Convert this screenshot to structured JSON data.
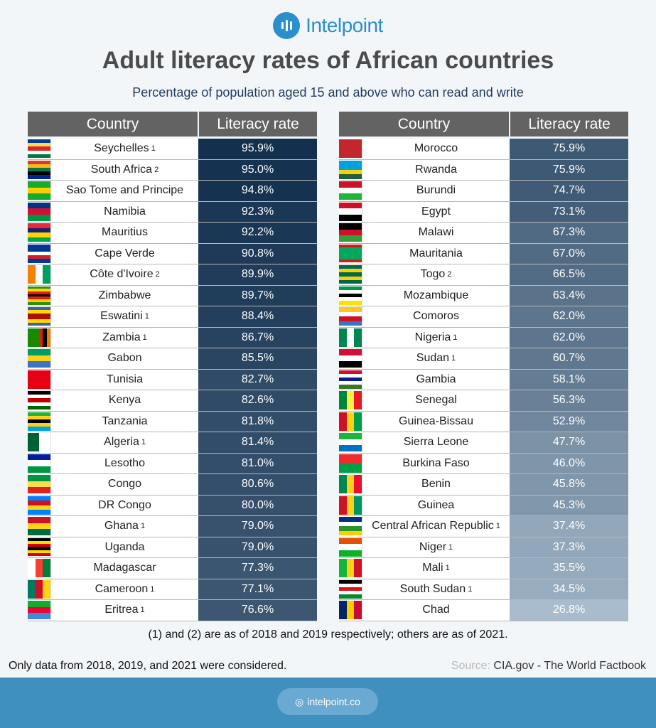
{
  "brand": {
    "name": "Intelpoint",
    "url": "intelpoint.co",
    "color": "#2a8fcc"
  },
  "header": {
    "title": "Adult literacy rates of African countries",
    "subtitle": "Percentage of population aged 15 and above who can read and write"
  },
  "chart_data": {
    "type": "table",
    "columns": [
      "Country",
      "Literacy rate"
    ],
    "color_scale": {
      "high": "#13304f",
      "low": "#a9bccd",
      "min": 26.8,
      "max": 95.9
    },
    "tables": [
      {
        "rows": [
          {
            "country": "Seychelles",
            "note": "1",
            "rate": "95.9%",
            "value": 95.9,
            "flag": {
              "d": "h",
              "c": [
                "#003f87",
                "#fcd856",
                "#d62828",
                "#fff",
                "#007a3d"
              ]
            }
          },
          {
            "country": "South Africa",
            "note": "2",
            "rate": "95.0%",
            "value": 95.0,
            "flag": {
              "d": "h",
              "c": [
                "#de3831",
                "#ffb612",
                "#007a4d",
                "#000",
                "#002395"
              ]
            }
          },
          {
            "country": "Sao Tome and Principe",
            "note": "",
            "rate": "94.8%",
            "value": 94.8,
            "flag": {
              "d": "h",
              "c": [
                "#12ad2b",
                "#ffce00",
                "#12ad2b"
              ]
            }
          },
          {
            "country": "Namibia",
            "note": "",
            "rate": "92.3%",
            "value": 92.3,
            "flag": {
              "d": "h",
              "c": [
                "#003580",
                "#d21034",
                "#009543"
              ]
            }
          },
          {
            "country": "Mauritius",
            "note": "",
            "rate": "92.2%",
            "value": 92.2,
            "flag": {
              "d": "h",
              "c": [
                "#ea2839",
                "#1a206d",
                "#ffd500",
                "#00a551"
              ]
            }
          },
          {
            "country": "Cape Verde",
            "note": "",
            "rate": "90.8%",
            "value": 90.8,
            "flag": {
              "d": "h",
              "c": [
                "#003893",
                "#003893",
                "#fff",
                "#cf2027",
                "#003893"
              ]
            }
          },
          {
            "country": "Côte d'Ivoire",
            "note": "2",
            "rate": "89.9%",
            "value": 89.9,
            "flag": {
              "d": "v",
              "c": [
                "#f77f00",
                "#fff",
                "#009e60"
              ]
            }
          },
          {
            "country": "Zimbabwe",
            "note": "",
            "rate": "89.7%",
            "value": 89.7,
            "flag": {
              "d": "h",
              "c": [
                "#319208",
                "#ffd200",
                "#de2010",
                "#000",
                "#de2010",
                "#ffd200",
                "#319208"
              ]
            }
          },
          {
            "country": "Eswatini",
            "note": "1",
            "rate": "88.4%",
            "value": 88.4,
            "flag": {
              "d": "h",
              "c": [
                "#3e5eb9",
                "#ffd900",
                "#b10c0c",
                "#b10c0c",
                "#ffd900",
                "#3e5eb9"
              ]
            }
          },
          {
            "country": "Zambia",
            "note": "1",
            "rate": "86.7%",
            "value": 86.7,
            "flag": {
              "d": "v",
              "c": [
                "#198a00",
                "#198a00",
                "#198a00",
                "#de2010",
                "#000",
                "#ef7d00"
              ]
            }
          },
          {
            "country": "Gabon",
            "note": "",
            "rate": "85.5%",
            "value": 85.5,
            "flag": {
              "d": "h",
              "c": [
                "#009e60",
                "#fcd116",
                "#3a75c4"
              ]
            }
          },
          {
            "country": "Tunisia",
            "note": "",
            "rate": "82.7%",
            "value": 82.7,
            "flag": {
              "d": "h",
              "c": [
                "#e70013"
              ]
            }
          },
          {
            "country": "Kenya",
            "note": "",
            "rate": "82.6%",
            "value": 82.6,
            "flag": {
              "d": "h",
              "c": [
                "#000",
                "#fff",
                "#bb0000",
                "#fff",
                "#006600"
              ]
            }
          },
          {
            "country": "Tanzania",
            "note": "",
            "rate": "81.8%",
            "value": 81.8,
            "flag": {
              "d": "h",
              "c": [
                "#1eb53a",
                "#fcd116",
                "#000",
                "#fcd116",
                "#00a3dd"
              ]
            }
          },
          {
            "country": "Algeria",
            "note": "1",
            "rate": "81.4%",
            "value": 81.4,
            "flag": {
              "d": "v",
              "c": [
                "#006233",
                "#fff"
              ]
            }
          },
          {
            "country": "Lesotho",
            "note": "",
            "rate": "81.0%",
            "value": 81.0,
            "flag": {
              "d": "h",
              "c": [
                "#00209f",
                "#fff",
                "#009543"
              ]
            }
          },
          {
            "country": "Congo",
            "note": "",
            "rate": "80.6%",
            "value": 80.6,
            "flag": {
              "d": "h",
              "c": [
                "#009543",
                "#fbde4a",
                "#dc241f"
              ]
            }
          },
          {
            "country": "DR Congo",
            "note": "",
            "rate": "80.0%",
            "value": 80.0,
            "flag": {
              "d": "h",
              "c": [
                "#007fff",
                "#ce1021",
                "#f7d618",
                "#007fff"
              ]
            }
          },
          {
            "country": "Ghana",
            "note": "1",
            "rate": "79.0%",
            "value": 79.0,
            "flag": {
              "d": "h",
              "c": [
                "#ce1126",
                "#fcd116",
                "#006b3f"
              ]
            }
          },
          {
            "country": "Uganda",
            "note": "",
            "rate": "79.0%",
            "value": 79.0,
            "flag": {
              "d": "h",
              "c": [
                "#000",
                "#fcdc04",
                "#d90000",
                "#000",
                "#fcdc04",
                "#d90000"
              ]
            }
          },
          {
            "country": "Madagascar",
            "note": "",
            "rate": "77.3%",
            "value": 77.3,
            "flag": {
              "d": "v",
              "c": [
                "#fff",
                "#fc3d32",
                "#007e3a"
              ]
            }
          },
          {
            "country": "Cameroon",
            "note": "1",
            "rate": "77.1%",
            "value": 77.1,
            "flag": {
              "d": "v",
              "c": [
                "#007a5e",
                "#ce1126",
                "#fcd116"
              ]
            }
          },
          {
            "country": "Eritrea",
            "note": "1",
            "rate": "76.6%",
            "value": 76.6,
            "flag": {
              "d": "h",
              "c": [
                "#12ad2b",
                "#ea0437",
                "#4189dd"
              ]
            }
          }
        ]
      },
      {
        "rows": [
          {
            "country": "Morocco",
            "note": "",
            "rate": "75.9%",
            "value": 75.9,
            "flag": {
              "d": "h",
              "c": [
                "#c1272d"
              ]
            }
          },
          {
            "country": "Rwanda",
            "note": "",
            "rate": "75.9%",
            "value": 75.9,
            "flag": {
              "d": "h",
              "c": [
                "#00a1de",
                "#00a1de",
                "#fad201",
                "#20603d"
              ]
            }
          },
          {
            "country": "Burundi",
            "note": "",
            "rate": "74.7%",
            "value": 74.7,
            "flag": {
              "d": "h",
              "c": [
                "#ce1126",
                "#fff",
                "#1eb53a"
              ]
            }
          },
          {
            "country": "Egypt",
            "note": "",
            "rate": "73.1%",
            "value": 73.1,
            "flag": {
              "d": "h",
              "c": [
                "#ce1126",
                "#fff",
                "#000"
              ]
            }
          },
          {
            "country": "Malawi",
            "note": "",
            "rate": "67.3%",
            "value": 67.3,
            "flag": {
              "d": "h",
              "c": [
                "#000",
                "#ce1126",
                "#339e35"
              ]
            }
          },
          {
            "country": "Mauritania",
            "note": "",
            "rate": "67.0%",
            "value": 67.0,
            "flag": {
              "d": "h",
              "c": [
                "#d01c1f",
                "#00a95c",
                "#00a95c",
                "#00a95c",
                "#00a95c",
                "#d01c1f"
              ]
            }
          },
          {
            "country": "Togo",
            "note": "2",
            "rate": "66.5%",
            "value": 66.5,
            "flag": {
              "d": "h",
              "c": [
                "#006a4e",
                "#ffce00",
                "#006a4e",
                "#ffce00",
                "#006a4e"
              ]
            }
          },
          {
            "country": "Mozambique",
            "note": "",
            "rate": "63.4%",
            "value": 63.4,
            "flag": {
              "d": "h",
              "c": [
                "#009a44",
                "#fff",
                "#000",
                "#fff",
                "#fce100"
              ]
            }
          },
          {
            "country": "Comoros",
            "note": "",
            "rate": "62.0%",
            "value": 62.0,
            "flag": {
              "d": "h",
              "c": [
                "#ffc61e",
                "#fff",
                "#ce1126",
                "#3a75c4"
              ]
            }
          },
          {
            "country": "Nigeria",
            "note": "1",
            "rate": "62.0%",
            "value": 62.0,
            "flag": {
              "d": "v",
              "c": [
                "#008751",
                "#fff",
                "#008751"
              ]
            }
          },
          {
            "country": "Sudan",
            "note": "1",
            "rate": "60.7%",
            "value": 60.7,
            "flag": {
              "d": "h",
              "c": [
                "#d21034",
                "#fff",
                "#000"
              ]
            }
          },
          {
            "country": "Gambia",
            "note": "",
            "rate": "58.1%",
            "value": 58.1,
            "flag": {
              "d": "h",
              "c": [
                "#ce1126",
                "#fff",
                "#0c1c8c",
                "#fff",
                "#3a7728"
              ]
            }
          },
          {
            "country": "Senegal",
            "note": "",
            "rate": "56.3%",
            "value": 56.3,
            "flag": {
              "d": "v",
              "c": [
                "#00853f",
                "#fdef42",
                "#e31b23"
              ]
            }
          },
          {
            "country": "Guinea-Bissau",
            "note": "",
            "rate": "52.9%",
            "value": 52.9,
            "flag": {
              "d": "v",
              "c": [
                "#ce1126",
                "#fcd116",
                "#009e49"
              ]
            }
          },
          {
            "country": "Sierra Leone",
            "note": "",
            "rate": "47.7%",
            "value": 47.7,
            "flag": {
              "d": "h",
              "c": [
                "#1eb53a",
                "#fff",
                "#0072c6"
              ]
            }
          },
          {
            "country": "Burkina Faso",
            "note": "",
            "rate": "46.0%",
            "value": 46.0,
            "flag": {
              "d": "h",
              "c": [
                "#ef2b2d",
                "#009e49"
              ]
            }
          },
          {
            "country": "Benin",
            "note": "",
            "rate": "45.8%",
            "value": 45.8,
            "flag": {
              "d": "v",
              "c": [
                "#008751",
                "#fcd116",
                "#e8112d"
              ]
            }
          },
          {
            "country": "Guinea",
            "note": "",
            "rate": "45.3%",
            "value": 45.3,
            "flag": {
              "d": "v",
              "c": [
                "#ce1126",
                "#fcd116",
                "#009460"
              ]
            }
          },
          {
            "country": "Central African Republic",
            "note": "1",
            "rate": "37.4%",
            "value": 37.4,
            "flag": {
              "d": "h",
              "c": [
                "#003082",
                "#fff",
                "#289728",
                "#ffce00"
              ]
            }
          },
          {
            "country": "Niger",
            "note": "1",
            "rate": "37.3%",
            "value": 37.3,
            "flag": {
              "d": "h",
              "c": [
                "#e05206",
                "#fff",
                "#0db02b"
              ]
            }
          },
          {
            "country": "Mali",
            "note": "1",
            "rate": "35.5%",
            "value": 35.5,
            "flag": {
              "d": "v",
              "c": [
                "#14b53a",
                "#fcd116",
                "#ce1126"
              ]
            }
          },
          {
            "country": "South Sudan",
            "note": "1",
            "rate": "34.5%",
            "value": 34.5,
            "flag": {
              "d": "h",
              "c": [
                "#000",
                "#fff",
                "#da121a",
                "#fff",
                "#078930"
              ]
            }
          },
          {
            "country": "Chad",
            "note": "",
            "rate": "26.8%",
            "value": 26.8,
            "flag": {
              "d": "v",
              "c": [
                "#002664",
                "#fecb00",
                "#c60c30"
              ]
            }
          }
        ]
      }
    ]
  },
  "footnote": "(1) and (2) are as of 2018 and 2019 respectively; others are as of 2021.",
  "disclaimer": "Only data from 2018, 2019, and 2021 were considered.",
  "source": {
    "label": "Source:",
    "value": "CIA.gov - The World Factbook"
  }
}
